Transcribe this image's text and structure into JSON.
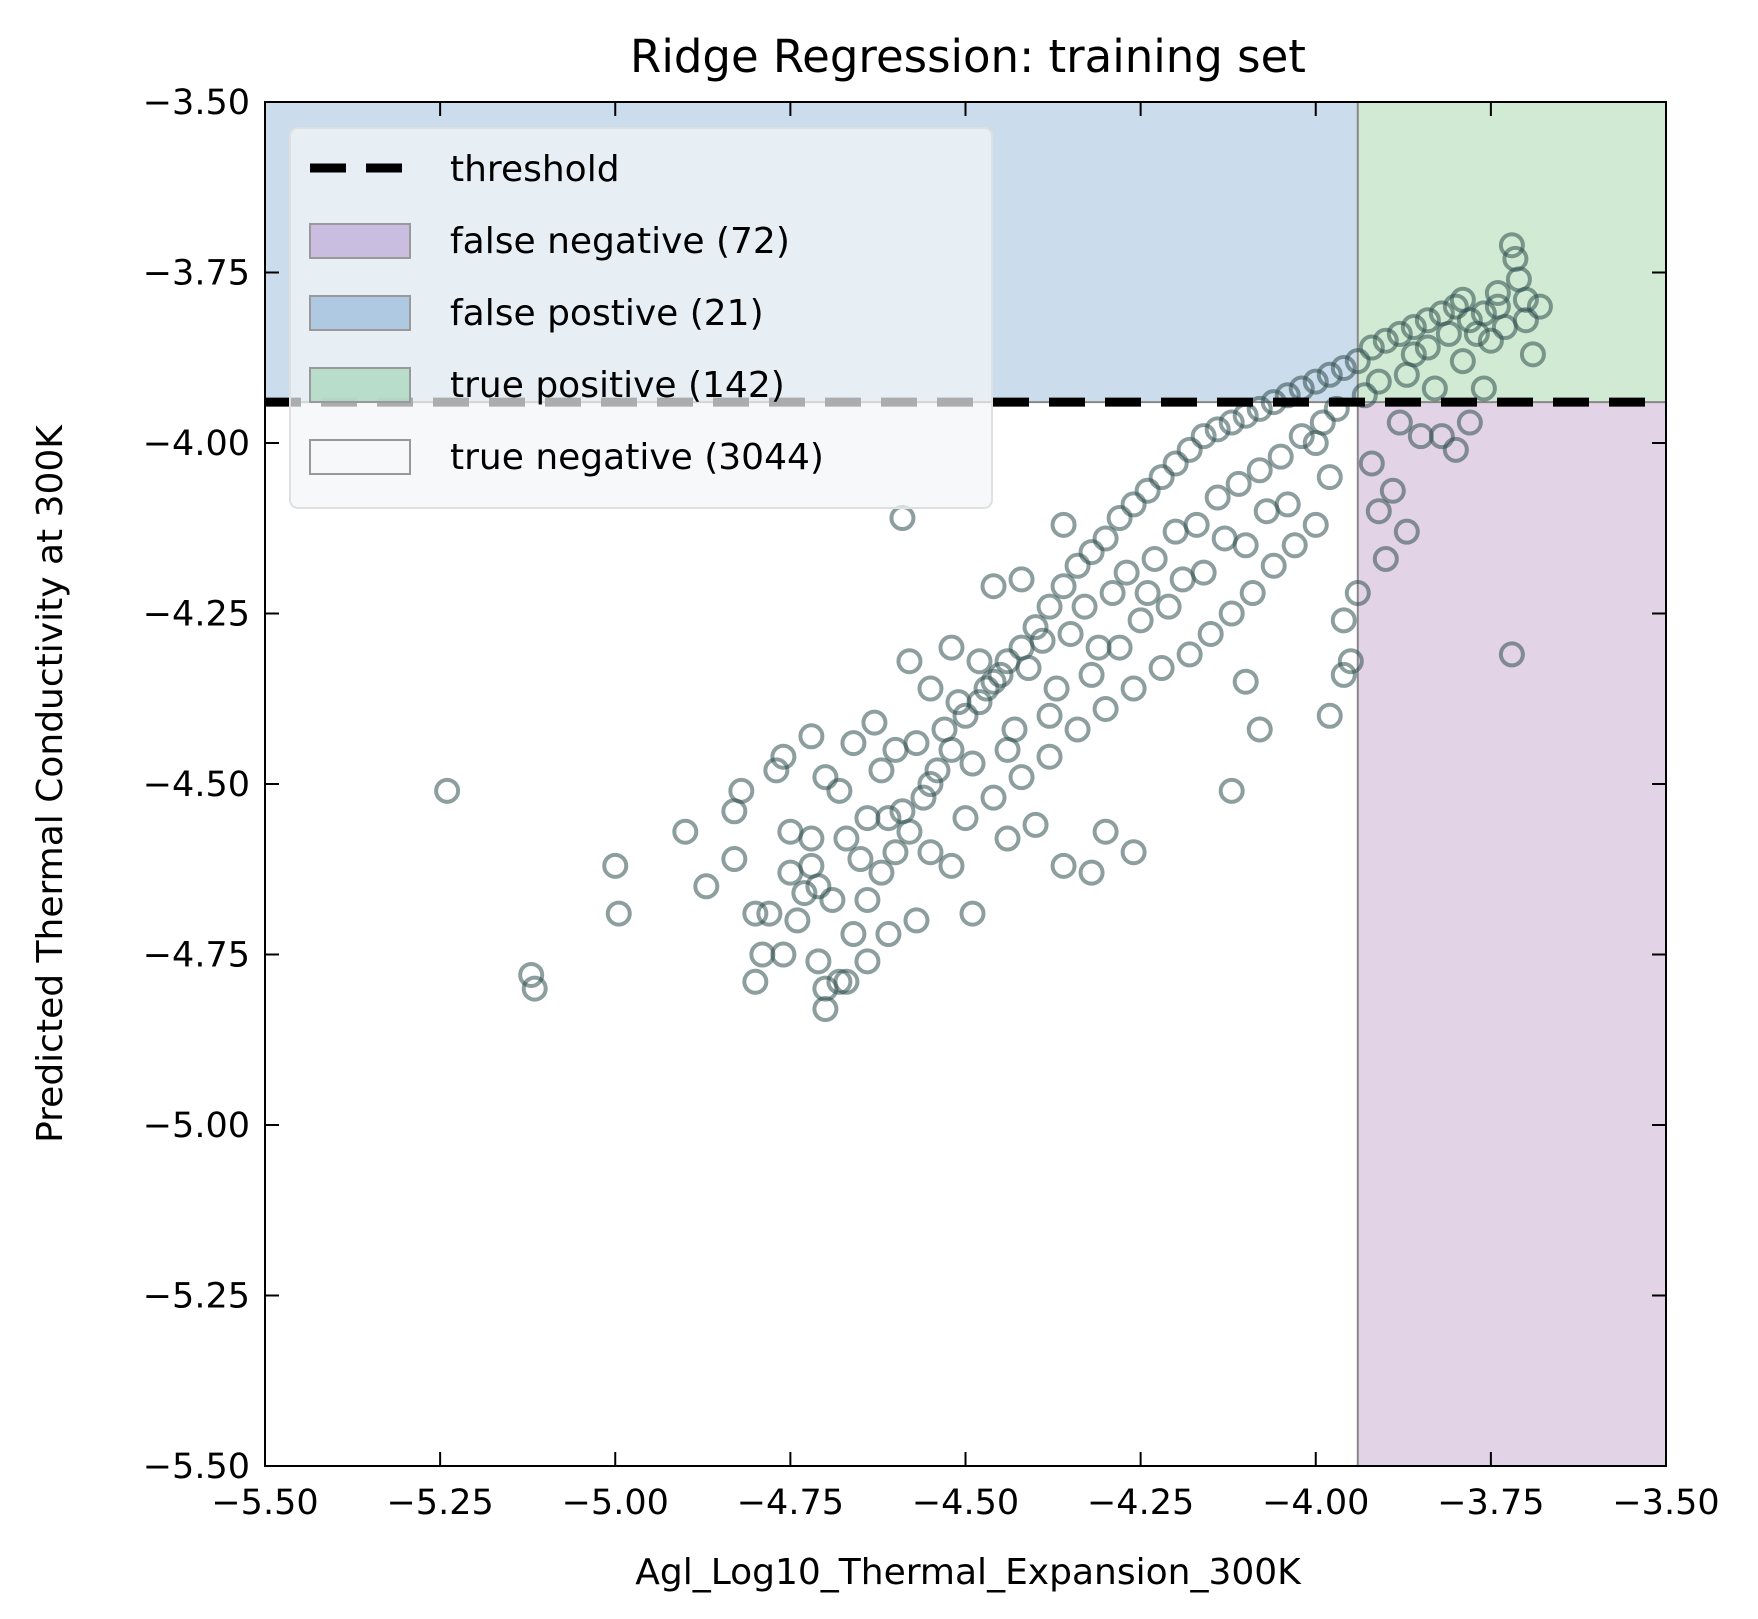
{
  "chart_data": {
    "type": "scatter",
    "title": "Ridge Regression: training set",
    "xlabel": "Agl_Log10_Thermal_Expansion_300K",
    "ylabel": "Predicted Thermal Conductivity at 300K",
    "xlim": [
      -5.5,
      -3.5
    ],
    "ylim": [
      -5.5,
      -3.5
    ],
    "xticks": [
      -5.5,
      -5.25,
      -5.0,
      -4.75,
      -4.5,
      -4.25,
      -4.0,
      -3.75,
      -3.5
    ],
    "yticks": [
      -5.5,
      -5.25,
      -5.0,
      -4.75,
      -4.5,
      -4.25,
      -4.0,
      -3.75,
      -3.5
    ],
    "xtick_labels": [
      "−5.50",
      "−5.25",
      "−5.00",
      "−4.75",
      "−4.50",
      "−4.25",
      "−4.00",
      "−3.75",
      "−3.50"
    ],
    "ytick_labels": [
      "−5.50",
      "−5.25",
      "−5.00",
      "−4.75",
      "−4.50",
      "−4.25",
      "−4.00",
      "−3.75",
      "−3.50"
    ],
    "threshold": -3.94,
    "regions": [
      {
        "name": "false positive",
        "x": [
          -5.5,
          -3.94
        ],
        "y": [
          -3.94,
          -3.5
        ],
        "color": "#a9c4e0"
      },
      {
        "name": "true positive",
        "x": [
          -3.94,
          -3.5
        ],
        "y": [
          -3.94,
          -3.5
        ],
        "color": "#b3dcb5"
      },
      {
        "name": "false negative",
        "x": [
          -3.94,
          -3.5
        ],
        "y": [
          -5.5,
          -3.94
        ],
        "color": "#d1b6d6"
      }
    ],
    "legend": {
      "position": "upper-left",
      "entries": [
        {
          "label": "threshold",
          "kind": "dashed-line",
          "color": "#000000"
        },
        {
          "label": "false negative (72)",
          "kind": "patch",
          "color": "#c6b8de"
        },
        {
          "label": "false postive (21)",
          "kind": "patch",
          "color": "#a8c4e0"
        },
        {
          "label": "true positive (142)",
          "kind": "patch",
          "color": "#b3dcc6"
        },
        {
          "label": "true negative (3044)",
          "kind": "patch",
          "color": "#ffffff"
        }
      ]
    },
    "point_color": "#2f4f4f",
    "series": [
      {
        "name": "training predictions",
        "points": [
          [
            -5.24,
            -4.51
          ],
          [
            -5.12,
            -4.78
          ],
          [
            -5.115,
            -4.8
          ],
          [
            -5.0,
            -4.62
          ],
          [
            -4.995,
            -4.69
          ],
          [
            -4.9,
            -4.57
          ],
          [
            -4.87,
            -4.65
          ],
          [
            -4.83,
            -4.54
          ],
          [
            -4.82,
            -4.51
          ],
          [
            -4.83,
            -4.61
          ],
          [
            -4.8,
            -4.69
          ],
          [
            -4.8,
            -4.79
          ],
          [
            -4.79,
            -4.75
          ],
          [
            -4.78,
            -4.69
          ],
          [
            -4.77,
            -4.48
          ],
          [
            -4.76,
            -4.46
          ],
          [
            -4.76,
            -4.75
          ],
          [
            -4.75,
            -4.57
          ],
          [
            -4.75,
            -4.63
          ],
          [
            -4.74,
            -4.7
          ],
          [
            -4.73,
            -4.66
          ],
          [
            -4.72,
            -4.43
          ],
          [
            -4.72,
            -4.58
          ],
          [
            -4.71,
            -4.76
          ],
          [
            -4.7,
            -4.8
          ],
          [
            -4.7,
            -4.83
          ],
          [
            -4.68,
            -4.79
          ],
          [
            -4.66,
            -4.72
          ],
          [
            -4.64,
            -4.67
          ],
          [
            -4.62,
            -4.63
          ],
          [
            -4.6,
            -4.6
          ],
          [
            -4.58,
            -4.57
          ],
          [
            -4.56,
            -4.52
          ],
          [
            -4.54,
            -4.48
          ],
          [
            -4.52,
            -4.45
          ],
          [
            -4.5,
            -4.4
          ],
          [
            -4.48,
            -4.38
          ],
          [
            -4.46,
            -4.35
          ],
          [
            -4.44,
            -4.32
          ],
          [
            -4.42,
            -4.3
          ],
          [
            -4.4,
            -4.27
          ],
          [
            -4.38,
            -4.24
          ],
          [
            -4.36,
            -4.21
          ],
          [
            -4.34,
            -4.18
          ],
          [
            -4.32,
            -4.16
          ],
          [
            -4.3,
            -4.14
          ],
          [
            -4.28,
            -4.11
          ],
          [
            -4.26,
            -4.09
          ],
          [
            -4.24,
            -4.07
          ],
          [
            -4.22,
            -4.05
          ],
          [
            -4.2,
            -4.03
          ],
          [
            -4.18,
            -4.01
          ],
          [
            -4.16,
            -3.99
          ],
          [
            -4.14,
            -3.98
          ],
          [
            -4.12,
            -3.97
          ],
          [
            -4.1,
            -3.96
          ],
          [
            -4.08,
            -3.95
          ],
          [
            -4.06,
            -3.94
          ],
          [
            -4.04,
            -3.93
          ],
          [
            -4.02,
            -3.92
          ],
          [
            -4.0,
            -3.91
          ],
          [
            -3.98,
            -3.9
          ],
          [
            -3.96,
            -3.89
          ],
          [
            -3.94,
            -3.88
          ],
          [
            -3.92,
            -3.86
          ],
          [
            -3.9,
            -3.85
          ],
          [
            -3.88,
            -3.84
          ],
          [
            -3.86,
            -3.83
          ],
          [
            -3.84,
            -3.82
          ],
          [
            -3.82,
            -3.81
          ],
          [
            -3.8,
            -3.8
          ],
          [
            -3.78,
            -3.82
          ],
          [
            -3.76,
            -3.81
          ],
          [
            -3.74,
            -3.78
          ],
          [
            -3.72,
            -3.71
          ],
          [
            -3.715,
            -3.73
          ],
          [
            -3.71,
            -3.76
          ],
          [
            -3.7,
            -3.79
          ],
          [
            -3.69,
            -3.87
          ],
          [
            -3.68,
            -3.8
          ],
          [
            -4.59,
            -4.11
          ],
          [
            -4.0,
            -4.0
          ],
          [
            -4.12,
            -4.51
          ],
          [
            -4.1,
            -4.35
          ],
          [
            -4.08,
            -4.42
          ],
          [
            -3.98,
            -4.4
          ],
          [
            -3.96,
            -4.34
          ],
          [
            -3.95,
            -4.32
          ],
          [
            -3.94,
            -4.22
          ],
          [
            -3.96,
            -4.26
          ],
          [
            -3.91,
            -4.1
          ],
          [
            -3.9,
            -4.17
          ],
          [
            -3.89,
            -4.07
          ],
          [
            -3.87,
            -4.13
          ],
          [
            -3.85,
            -3.99
          ],
          [
            -3.8,
            -4.01
          ],
          [
            -3.78,
            -3.97
          ],
          [
            -3.72,
            -4.31
          ],
          [
            -3.76,
            -3.92
          ],
          [
            -3.82,
            -3.99
          ],
          [
            -4.26,
            -4.6
          ],
          [
            -4.32,
            -4.63
          ],
          [
            -4.3,
            -4.57
          ],
          [
            -4.36,
            -4.62
          ],
          [
            -4.4,
            -4.56
          ],
          [
            -4.44,
            -4.58
          ],
          [
            -4.49,
            -4.69
          ],
          [
            -4.52,
            -4.62
          ],
          [
            -4.57,
            -4.7
          ],
          [
            -4.61,
            -4.72
          ],
          [
            -4.64,
            -4.76
          ],
          [
            -4.67,
            -4.79
          ],
          [
            -4.46,
            -4.21
          ],
          [
            -4.42,
            -4.2
          ],
          [
            -4.36,
            -4.12
          ],
          [
            -4.52,
            -4.3
          ],
          [
            -4.48,
            -4.32
          ],
          [
            -4.58,
            -4.32
          ],
          [
            -4.55,
            -4.36
          ],
          [
            -4.63,
            -4.41
          ],
          [
            -4.66,
            -4.44
          ],
          [
            -4.6,
            -4.45
          ],
          [
            -4.7,
            -4.49
          ],
          [
            -4.68,
            -4.51
          ],
          [
            -4.64,
            -4.55
          ],
          [
            -4.59,
            -4.54
          ],
          [
            -4.55,
            -4.6
          ],
          [
            -4.5,
            -4.55
          ],
          [
            -4.46,
            -4.52
          ],
          [
            -4.42,
            -4.49
          ],
          [
            -4.38,
            -4.46
          ],
          [
            -4.34,
            -4.42
          ],
          [
            -4.3,
            -4.39
          ],
          [
            -4.26,
            -4.36
          ],
          [
            -4.22,
            -4.33
          ],
          [
            -4.18,
            -4.31
          ],
          [
            -4.15,
            -4.28
          ],
          [
            -4.12,
            -4.25
          ],
          [
            -4.09,
            -4.22
          ],
          [
            -4.06,
            -4.18
          ],
          [
            -4.03,
            -4.15
          ],
          [
            -4.0,
            -4.12
          ],
          [
            -4.07,
            -4.1
          ],
          [
            -4.13,
            -4.14
          ],
          [
            -4.19,
            -4.2
          ],
          [
            -4.25,
            -4.26
          ],
          [
            -4.31,
            -4.3
          ],
          [
            -4.37,
            -4.36
          ],
          [
            -4.43,
            -4.42
          ],
          [
            -4.49,
            -4.47
          ],
          [
            -4.55,
            -4.5
          ],
          [
            -4.61,
            -4.55
          ],
          [
            -4.67,
            -4.58
          ],
          [
            -4.72,
            -4.62
          ],
          [
            -4.69,
            -4.67
          ],
          [
            -4.53,
            -4.42
          ],
          [
            -4.47,
            -4.36
          ],
          [
            -4.41,
            -4.33
          ],
          [
            -4.35,
            -4.28
          ],
          [
            -4.29,
            -4.22
          ],
          [
            -4.23,
            -4.17
          ],
          [
            -4.17,
            -4.12
          ],
          [
            -4.11,
            -4.06
          ],
          [
            -4.05,
            -4.02
          ],
          [
            -3.99,
            -3.97
          ],
          [
            -3.93,
            -3.93
          ],
          [
            -3.87,
            -3.9
          ],
          [
            -3.84,
            -3.86
          ],
          [
            -3.81,
            -3.84
          ],
          [
            -3.86,
            -3.87
          ],
          [
            -3.91,
            -3.91
          ],
          [
            -3.97,
            -3.95
          ],
          [
            -4.02,
            -3.99
          ],
          [
            -4.08,
            -4.04
          ],
          [
            -4.14,
            -4.08
          ],
          [
            -4.2,
            -4.13
          ],
          [
            -4.27,
            -4.19
          ],
          [
            -4.33,
            -4.24
          ],
          [
            -4.39,
            -4.29
          ],
          [
            -4.45,
            -4.34
          ],
          [
            -4.51,
            -4.38
          ],
          [
            -4.57,
            -4.44
          ],
          [
            -4.62,
            -4.48
          ],
          [
            -4.65,
            -4.61
          ],
          [
            -4.71,
            -4.65
          ],
          [
            -4.44,
            -4.45
          ],
          [
            -4.38,
            -4.4
          ],
          [
            -4.32,
            -4.34
          ],
          [
            -4.28,
            -4.3
          ],
          [
            -4.24,
            -4.22
          ],
          [
            -4.21,
            -4.24
          ],
          [
            -4.16,
            -4.19
          ],
          [
            -4.1,
            -4.15
          ],
          [
            -4.04,
            -4.09
          ],
          [
            -3.98,
            -4.05
          ],
          [
            -3.92,
            -4.03
          ],
          [
            -3.88,
            -3.97
          ],
          [
            -3.83,
            -3.92
          ],
          [
            -3.79,
            -3.88
          ],
          [
            -3.75,
            -3.85
          ],
          [
            -3.73,
            -3.83
          ],
          [
            -3.77,
            -3.84
          ],
          [
            -3.74,
            -3.8
          ],
          [
            -3.7,
            -3.82
          ],
          [
            -3.79,
            -3.79
          ]
        ]
      }
    ]
  }
}
